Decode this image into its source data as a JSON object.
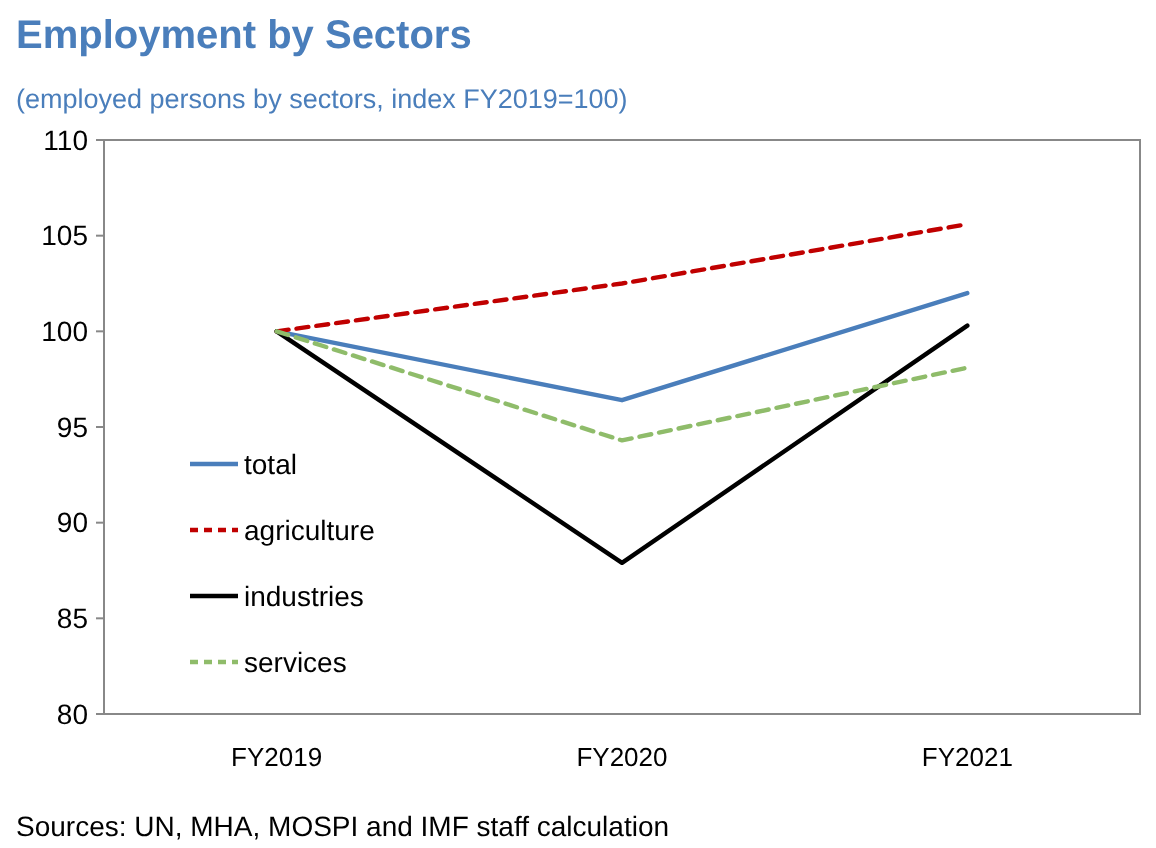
{
  "chart_data": {
    "type": "line",
    "title": "Employment by Sectors",
    "subtitle": "(employed persons by sectors, index FY2019=100)",
    "categories": [
      "FY2019",
      "FY2020",
      "FY2021"
    ],
    "series": [
      {
        "name": "total",
        "color": "#4a7ebb",
        "values": [
          100,
          96.4,
          102
        ]
      },
      {
        "name": "agriculture",
        "color": "#c00000",
        "values": [
          100,
          102.5,
          105.6
        ],
        "line_style": "dashed"
      },
      {
        "name": "industries",
        "color": "#000000",
        "values": [
          100,
          87.9,
          100.3
        ]
      },
      {
        "name": "services",
        "color": "#8fbc6a",
        "values": [
          100,
          94.3,
          98.1
        ],
        "line_style": "dashed"
      }
    ],
    "ylim": [
      80,
      110
    ],
    "yticks": [
      80,
      85,
      90,
      95,
      100,
      105,
      110
    ],
    "grid": false,
    "legend": "left",
    "annotations": [
      "Sources: UN, MHA, MOSPI and IMF staff calculation"
    ]
  }
}
